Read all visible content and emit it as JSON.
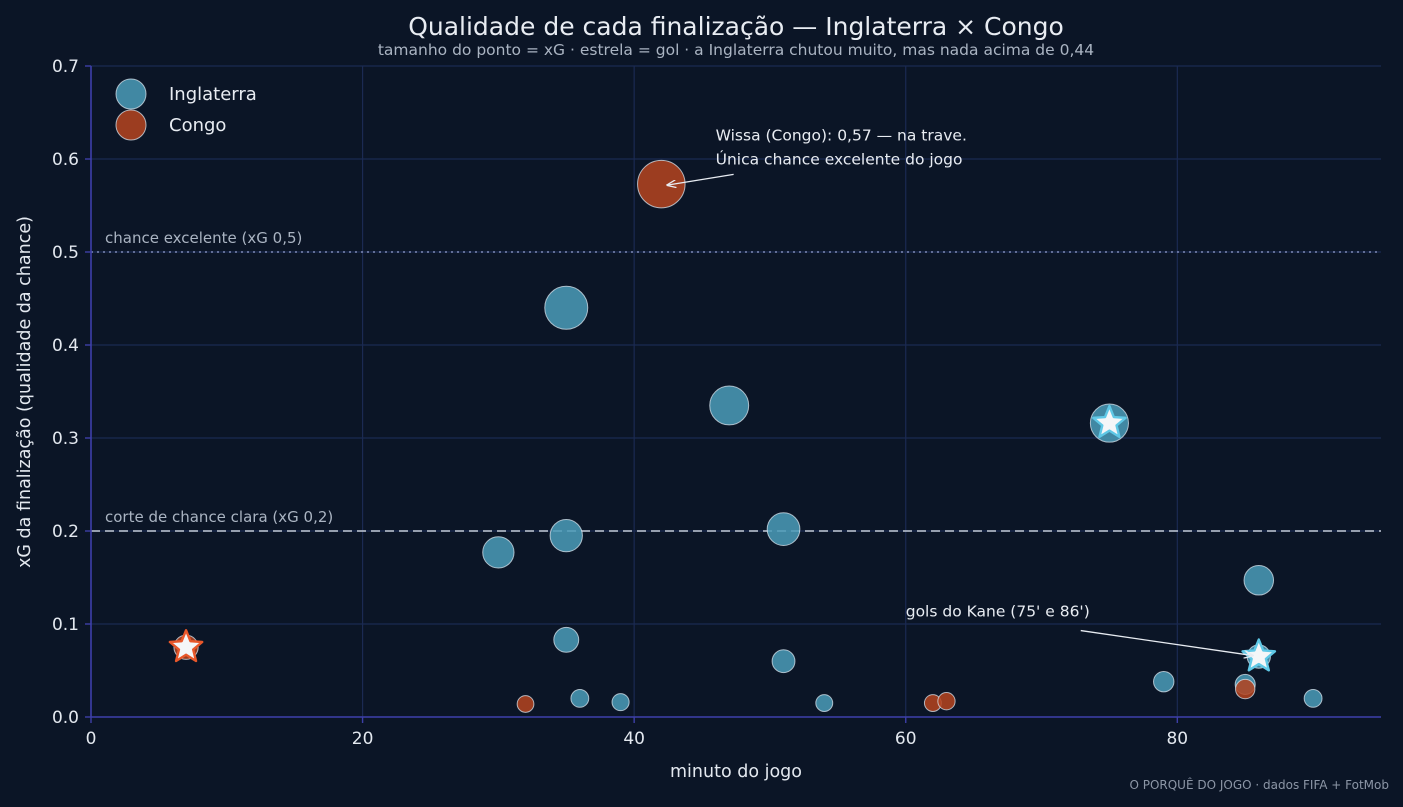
{
  "chart_data": {
    "type": "scatter",
    "title": "Qualidade de cada finalização — Inglaterra × Congo",
    "subtitle": "tamanho do ponto = xG · estrela = gol · a Inglaterra chutou muito, mas nada acima de 0,44",
    "xlabel": "minuto do jogo",
    "ylabel": "xG da finalização (qualidade da chance)",
    "xlim": [
      0,
      95
    ],
    "ylim": [
      0,
      0.7
    ],
    "xticks": [
      0,
      20,
      40,
      60,
      80
    ],
    "yticks": [
      0.0,
      0.1,
      0.2,
      0.3,
      0.4,
      0.5,
      0.6,
      0.7
    ],
    "grid": true,
    "legend_position": "top-left",
    "series": [
      {
        "name": "Inglaterra",
        "color": "#4a9bb8",
        "points": [
          {
            "x": 30,
            "y": 0.177
          },
          {
            "x": 35,
            "y": 0.44
          },
          {
            "x": 35,
            "y": 0.195
          },
          {
            "x": 35,
            "y": 0.083
          },
          {
            "x": 36,
            "y": 0.02
          },
          {
            "x": 39,
            "y": 0.016
          },
          {
            "x": 47,
            "y": 0.335
          },
          {
            "x": 51,
            "y": 0.202
          },
          {
            "x": 51,
            "y": 0.06
          },
          {
            "x": 54,
            "y": 0.015
          },
          {
            "x": 75,
            "y": 0.316,
            "goal": true
          },
          {
            "x": 79,
            "y": 0.038
          },
          {
            "x": 85,
            "y": 0.035
          },
          {
            "x": 86,
            "y": 0.147
          },
          {
            "x": 86,
            "y": 0.065,
            "goal": true
          },
          {
            "x": 90,
            "y": 0.02
          }
        ]
      },
      {
        "name": "Congo",
        "color": "#b5431f",
        "points": [
          {
            "x": 7,
            "y": 0.075,
            "goal": true
          },
          {
            "x": 32,
            "y": 0.014
          },
          {
            "x": 42,
            "y": 0.573
          },
          {
            "x": 62,
            "y": 0.015
          },
          {
            "x": 63,
            "y": 0.017
          },
          {
            "x": 85,
            "y": 0.03
          }
        ]
      }
    ],
    "reference_lines": [
      {
        "y": 0.5,
        "label": "chance excelente (xG 0,5)",
        "style": "dotted"
      },
      {
        "y": 0.2,
        "label": "corte de chance clara (xG 0,2)",
        "style": "dashed"
      }
    ],
    "annotations": [
      {
        "text_lines": [
          "Wissa (Congo): 0,57 — na trave.",
          "Única chance excelente do jogo"
        ],
        "target": {
          "x": 42,
          "y": 0.573
        },
        "text_at": {
          "x": 46,
          "y": 0.62
        }
      },
      {
        "text_lines": [
          "gols do Kane (75' e 86')"
        ],
        "target": {
          "x": 86,
          "y": 0.065
        },
        "text_at": {
          "x": 60,
          "y": 0.108
        }
      }
    ],
    "source": "O PORQUÊ DO JOGO · dados FIFA + FotMob"
  }
}
